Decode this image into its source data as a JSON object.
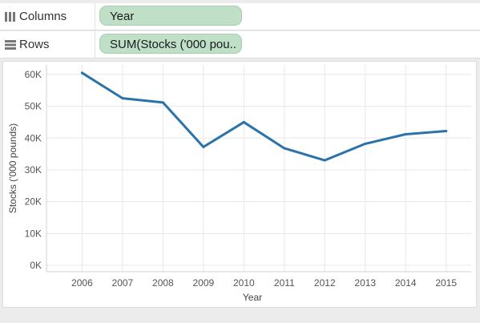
{
  "shelves": {
    "columns": {
      "label": "Columns",
      "pill": "Year"
    },
    "rows": {
      "label": "Rows",
      "pill": "SUM(Stocks ('000 pou.."
    }
  },
  "colors": {
    "line": "#2a73aa",
    "pill_bg": "#bfe0c7",
    "grid": "#e8e8e8"
  },
  "chart_data": {
    "type": "line",
    "xlabel": "Year",
    "ylabel": "Stocks ('000 pounds)",
    "x": [
      2006,
      2007,
      2008,
      2009,
      2010,
      2011,
      2012,
      2013,
      2014,
      2015
    ],
    "values": [
      60500,
      52500,
      51200,
      37200,
      45000,
      36800,
      33000,
      38200,
      41200,
      42200
    ],
    "ylim": [
      0,
      63000
    ],
    "yticks": [
      0,
      10000,
      20000,
      30000,
      40000,
      50000,
      60000
    ],
    "ytick_labels": [
      "0K",
      "10K",
      "20K",
      "30K",
      "40K",
      "50K",
      "60K"
    ],
    "grid": true
  }
}
